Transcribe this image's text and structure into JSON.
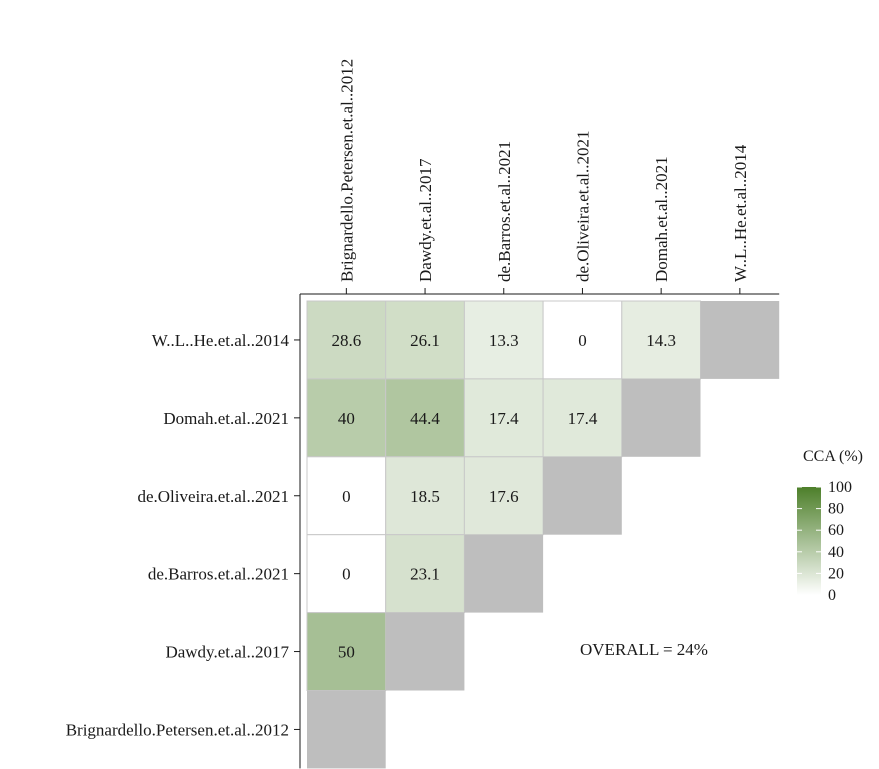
{
  "chart_data": {
    "type": "heatmap",
    "title": "",
    "xlabel": "",
    "ylabel": "",
    "x_categories": [
      "Brignardello.Petersen.et.al..2012",
      "Dawdy.et.al..2017",
      "de.Barros.et.al..2021",
      "de.Oliveira.et.al..2021",
      "Domah.et.al..2021",
      "W..L..He.et.al..2014"
    ],
    "y_categories": [
      "W..L..He.et.al..2014",
      "Domah.et.al..2021",
      "de.Oliveira.et.al..2021",
      "de.Barros.et.al..2021",
      "Dawdy.et.al..2017",
      "Brignardello.Petersen.et.al..2012"
    ],
    "values": [
      [
        28.6,
        26.1,
        13.3,
        0,
        14.3,
        null
      ],
      [
        40,
        44.4,
        17.4,
        17.4,
        null
      ],
      [
        0,
        18.5,
        17.6,
        null
      ],
      [
        0,
        23.1,
        null
      ],
      [
        50,
        null
      ],
      [
        null
      ]
    ],
    "color_scale": {
      "min": 0,
      "max": 100,
      "low": "#ffffff",
      "high": "#4d7f2a",
      "missing": "#bebebe"
    },
    "legend": {
      "title": "CCA (%)",
      "ticks": [
        0,
        20,
        40,
        60,
        80,
        100
      ],
      "position": "right"
    },
    "annotation": "OVERALL = 24%"
  }
}
